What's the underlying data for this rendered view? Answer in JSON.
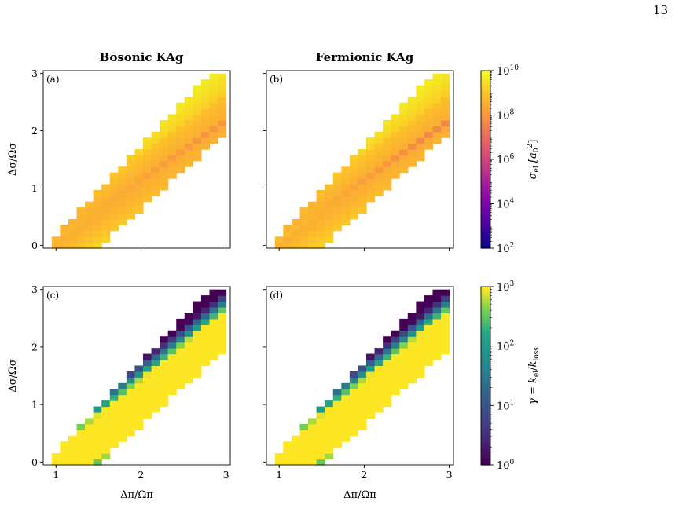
{
  "page_number": "13",
  "column_titles": [
    "Bosonic KAg",
    "Fermionic KAg"
  ],
  "panel_labels": [
    "(a)",
    "(b)",
    "(c)",
    "(d)"
  ],
  "axis": {
    "xlabel": "Δπ/Ωπ",
    "ylabel": "Δσ/Ωσ",
    "x_ticks": [
      "1",
      "2",
      "3"
    ],
    "y_ticks": [
      "0",
      "1",
      "2",
      "3"
    ],
    "xlim": [
      0.85,
      3.05
    ],
    "ylim": [
      -0.05,
      3.05
    ]
  },
  "colorbars": [
    {
      "label": "σel [a0²]",
      "label_main": "σ",
      "label_sub": "el",
      "label_bracket": "[a",
      "label_base_sub": "0",
      "label_sup": "2",
      "label_close": "]",
      "tick_base": "10",
      "tick_exponents": [
        "10",
        "8",
        "6",
        "4",
        "2"
      ],
      "log_range": [
        2,
        10
      ],
      "colormap": "plasma"
    },
    {
      "label": "γ = kel/kloss",
      "label_gamma": "γ",
      "label_eq": " = ",
      "label_k1": "k",
      "label_k1_sub": "el",
      "label_slash": "/",
      "label_k2": "k",
      "label_k2_sub": "loss",
      "tick_base": "10",
      "tick_exponents": [
        "3",
        "2",
        "1",
        "0"
      ],
      "log_range": [
        0,
        3
      ],
      "colormap": "viridis"
    }
  ],
  "chart_data": [
    {
      "type": "heatmap",
      "panel": "(a)",
      "title": "Bosonic KAg",
      "quantity": "sigma_el",
      "log_range": [
        2,
        10
      ],
      "x_range": [
        0.9,
        3.0
      ],
      "y_range": [
        0.0,
        3.0
      ],
      "grid": [
        21,
        30
      ],
      "description_of_values": "populated wedge between lines; log10 sigma ≈ 9.8 at edges, ≈ 8.6 in central band, minimum ≈ 7.6 along ridge"
    },
    {
      "type": "heatmap",
      "panel": "(b)",
      "title": "Fermionic KAg",
      "quantity": "sigma_el",
      "log_range": [
        2,
        10
      ],
      "x_range": [
        0.9,
        3.0
      ],
      "y_range": [
        0.0,
        3.0
      ],
      "grid": [
        21,
        30
      ],
      "description_of_values": "populated wedge; log10 sigma ≈ 9.8 near edges, ≈ 8.7 in band, dip ≈ 7.3 at ridge"
    },
    {
      "type": "heatmap",
      "panel": "(c)",
      "title": "",
      "quantity": "gamma",
      "log_range": [
        0,
        3
      ],
      "x_range": [
        0.9,
        3.0
      ],
      "y_range": [
        0.0,
        3.0
      ],
      "grid": [
        21,
        30
      ],
      "description_of_values": "log10 gamma ≈ 3 in central band, falling to 0 at wedge edges"
    },
    {
      "type": "heatmap",
      "panel": "(d)",
      "title": "",
      "quantity": "gamma",
      "log_range": [
        0,
        3
      ],
      "x_range": [
        0.9,
        3.0
      ],
      "y_range": [
        0.0,
        3.0
      ],
      "grid": [
        21,
        30
      ],
      "description_of_values": "log10 gamma ≈ 3 in central band, falling to 0 at wedge edges"
    }
  ]
}
